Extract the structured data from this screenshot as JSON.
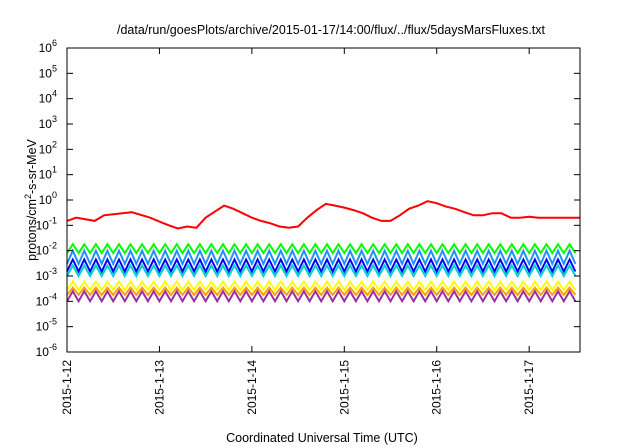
{
  "chart_data": {
    "type": "line",
    "title": "/data/run/goesPlots/archive/2015-01-17/14:00/flux/../flux/5daysMarsFluxes.txt",
    "xlabel": "Coordinated Universal Time (UTC)",
    "ylabel": "protons/cm^2-s-sr-MeV",
    "yscale": "log",
    "ylim": [
      1e-06,
      1000000.0
    ],
    "xlim_days": [
      0,
      5.55
    ],
    "y_ticks": [
      {
        "base": "10",
        "exp": "-6",
        "value": 1e-06
      },
      {
        "base": "10",
        "exp": "-5",
        "value": 1e-05
      },
      {
        "base": "10",
        "exp": "-4",
        "value": 0.0001
      },
      {
        "base": "10",
        "exp": "-3",
        "value": 0.001
      },
      {
        "base": "10",
        "exp": "-2",
        "value": 0.01
      },
      {
        "base": "10",
        "exp": "-1",
        "value": 0.1
      },
      {
        "base": "10",
        "exp": "0",
        "value": 1
      },
      {
        "base": "10",
        "exp": "1",
        "value": 10
      },
      {
        "base": "10",
        "exp": "2",
        "value": 100
      },
      {
        "base": "10",
        "exp": "3",
        "value": 1000
      },
      {
        "base": "10",
        "exp": "4",
        "value": 10000
      },
      {
        "base": "10",
        "exp": "5",
        "value": 100000
      },
      {
        "base": "10",
        "exp": "6",
        "value": 1000000
      }
    ],
    "x_ticks": [
      {
        "label": "2015-1-12",
        "day": 0
      },
      {
        "label": "2015-1-13",
        "day": 1
      },
      {
        "label": "2015-1-14",
        "day": 2
      },
      {
        "label": "2015-1-15",
        "day": 3
      },
      {
        "label": "2015-1-16",
        "day": 4
      },
      {
        "label": "2015-1-17",
        "day": 5
      }
    ],
    "grid": false,
    "legend": "none",
    "sawtooth_period_days": 0.125,
    "series": [
      {
        "color": "#ff0000",
        "style": "piecewise",
        "points": [
          [
            0,
            0.15
          ],
          [
            0.1,
            0.2
          ],
          [
            0.3,
            0.15
          ],
          [
            0.4,
            0.25
          ],
          [
            0.6,
            0.3
          ],
          [
            0.7,
            0.33
          ],
          [
            0.9,
            0.2
          ],
          [
            1.0,
            0.14
          ],
          [
            1.1,
            0.1
          ],
          [
            1.2,
            0.075
          ],
          [
            1.3,
            0.09
          ],
          [
            1.4,
            0.08
          ],
          [
            1.5,
            0.2
          ],
          [
            1.6,
            0.35
          ],
          [
            1.7,
            0.6
          ],
          [
            1.8,
            0.45
          ],
          [
            1.9,
            0.3
          ],
          [
            2.0,
            0.2
          ],
          [
            2.1,
            0.15
          ],
          [
            2.2,
            0.12
          ],
          [
            2.3,
            0.09
          ],
          [
            2.4,
            0.08
          ],
          [
            2.5,
            0.09
          ],
          [
            2.6,
            0.2
          ],
          [
            2.7,
            0.4
          ],
          [
            2.8,
            0.7
          ],
          [
            2.9,
            0.6
          ],
          [
            3.0,
            0.5
          ],
          [
            3.1,
            0.4
          ],
          [
            3.2,
            0.3
          ],
          [
            3.3,
            0.2
          ],
          [
            3.4,
            0.15
          ],
          [
            3.5,
            0.15
          ],
          [
            3.6,
            0.25
          ],
          [
            3.7,
            0.45
          ],
          [
            3.8,
            0.6
          ],
          [
            3.9,
            0.9
          ],
          [
            4.0,
            0.75
          ],
          [
            4.1,
            0.55
          ],
          [
            4.2,
            0.45
          ],
          [
            4.3,
            0.33
          ],
          [
            4.4,
            0.25
          ],
          [
            4.5,
            0.25
          ],
          [
            4.6,
            0.3
          ],
          [
            4.7,
            0.3
          ],
          [
            4.8,
            0.2
          ],
          [
            4.9,
            0.2
          ],
          [
            5.0,
            0.22
          ],
          [
            5.1,
            0.2
          ],
          [
            5.2,
            0.2
          ],
          [
            5.3,
            0.2
          ],
          [
            5.4,
            0.2
          ],
          [
            5.55,
            0.2
          ]
        ]
      },
      {
        "color": "#00ff00",
        "style": "sawtooth",
        "low": 0.008,
        "high": 0.018
      },
      {
        "color": "#1e90ff",
        "style": "sawtooth",
        "low": 0.003,
        "high": 0.01
      },
      {
        "color": "#0000ff",
        "style": "sawtooth",
        "low": 0.0015,
        "high": 0.0045
      },
      {
        "color": "#00d2d2",
        "style": "sawtooth",
        "low": 0.001,
        "high": 0.0026
      },
      {
        "color": "#ffff00",
        "style": "sawtooth",
        "low": 0.00028,
        "high": 0.0006
      },
      {
        "color": "#ffa000",
        "style": "sawtooth",
        "low": 0.00018,
        "high": 0.00035
      },
      {
        "color": "#9b30a0",
        "style": "sawtooth",
        "low": 0.0001,
        "high": 0.00025
      }
    ]
  }
}
